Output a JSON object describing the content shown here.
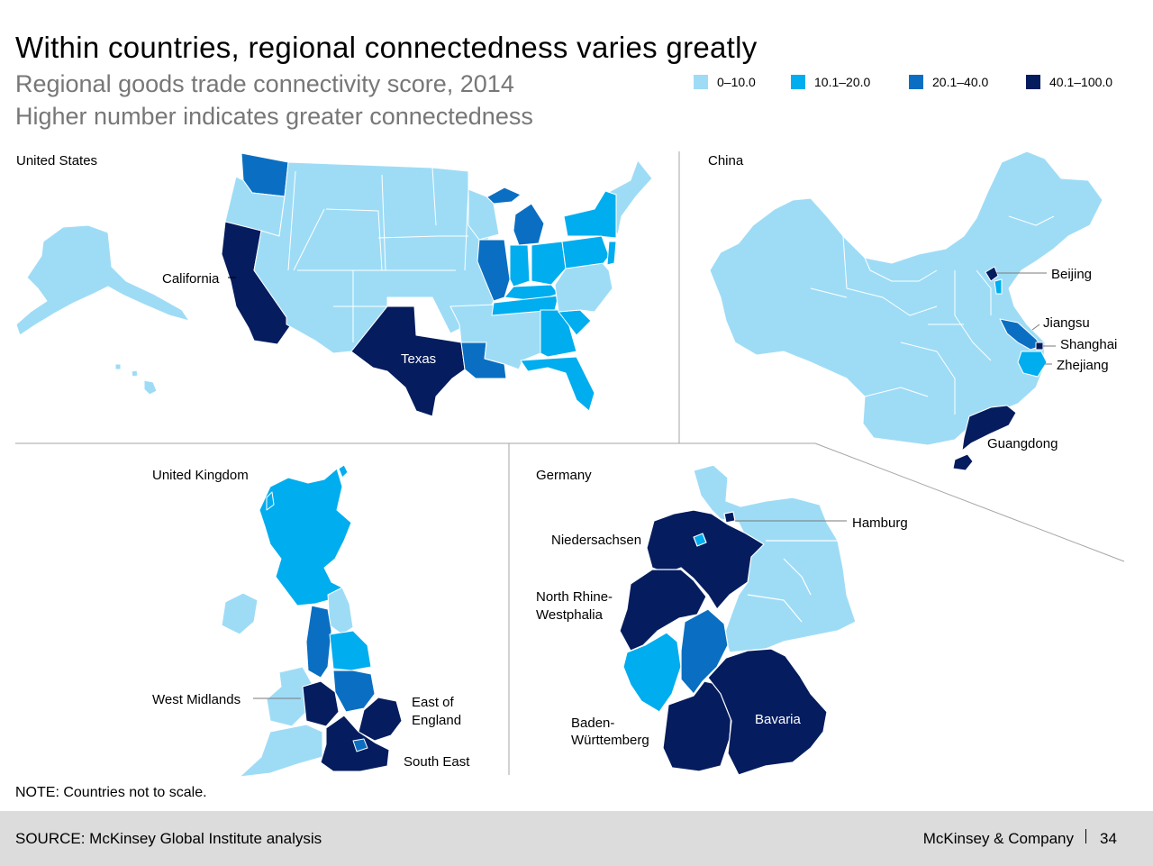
{
  "header": {
    "title": "Within countries, regional connectedness varies greatly",
    "subtitle": "Regional goods trade connectivity score, 2014",
    "subtitle2": "Higher number indicates greater connectedness"
  },
  "colors": {
    "band1": "#9edcf6",
    "band2": "#00adee",
    "band3": "#0a6fc2",
    "band4": "#051c5e",
    "divider": "#a6a6a6",
    "footer_bg": "#dcdcdc"
  },
  "legend": [
    {
      "label": "0–10.0",
      "color": "#9edcf6"
    },
    {
      "label": "10.1–20.0",
      "color": "#00adee"
    },
    {
      "label": "20.1–40.0",
      "color": "#0a6fc2"
    },
    {
      "label": "40.1–100.0",
      "color": "#051c5e"
    }
  ],
  "maps": {
    "us": {
      "name": "United States",
      "labels": {
        "california": "California",
        "texas": "Texas"
      }
    },
    "china": {
      "name": "China",
      "labels": {
        "beijing": "Beijing",
        "jiangsu": "Jiangsu",
        "shanghai": "Shanghai",
        "zhejiang": "Zhejiang",
        "guangdong": "Guangdong"
      }
    },
    "uk": {
      "name": "United Kingdom",
      "labels": {
        "west_midlands": "West Midlands",
        "east_of_england_1": "East of",
        "east_of_england_2": "England",
        "south_east": "South East"
      }
    },
    "germany": {
      "name": "Germany",
      "labels": {
        "hamburg": "Hamburg",
        "niedersachsen": "Niedersachsen",
        "nrw_1": "North Rhine-",
        "nrw_2": "Westphalia",
        "bw_1": "Baden-",
        "bw_2": "Württemberg",
        "bavaria": "Bavaria"
      }
    }
  },
  "note": "NOTE: Countries not to scale.",
  "footer": {
    "source": "SOURCE: McKinsey Global Institute analysis",
    "brand": "McKinsey & Company",
    "page": "34"
  }
}
